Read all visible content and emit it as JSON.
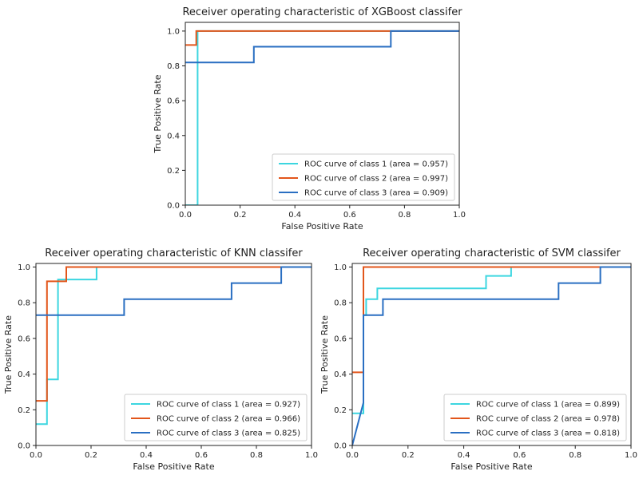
{
  "chart_data": [
    {
      "type": "line",
      "title": "Receiver operating characteristic of XGBoost classifer",
      "xlabel": "False Positive Rate",
      "ylabel": "True Positive Rate",
      "xlim": [
        0,
        1
      ],
      "ylim": [
        0,
        1.05
      ],
      "xticks": [
        "0.0",
        "0.2",
        "0.4",
        "0.6",
        "0.8",
        "1.0"
      ],
      "yticks": [
        "0.0",
        "0.2",
        "0.4",
        "0.6",
        "0.8",
        "1.0"
      ],
      "legend_position": "lower-right",
      "series": [
        {
          "name": "ROC curve of class 1 (area = 0.957)",
          "color": "#3cd6e0",
          "x": [
            0.0,
            0.045,
            0.045,
            1.0
          ],
          "y": [
            0.0,
            0.0,
            1.0,
            1.0
          ]
        },
        {
          "name": "ROC curve of class 2 (area = 0.997)",
          "color": "#e2561b",
          "x": [
            0.0,
            0.04,
            0.04,
            1.0
          ],
          "y": [
            0.92,
            0.92,
            1.0,
            1.0
          ]
        },
        {
          "name": "ROC curve of class 3 (area = 0.909)",
          "color": "#2a6fc2",
          "x": [
            0.0,
            0.25,
            0.25,
            0.75,
            0.75,
            1.0
          ],
          "y": [
            0.82,
            0.82,
            0.91,
            0.91,
            1.0,
            1.0
          ]
        }
      ]
    },
    {
      "type": "line",
      "title": "Receiver operating characteristic of KNN classifer",
      "xlabel": "False Positive Rate",
      "ylabel": "True Positive Rate",
      "xlim": [
        0,
        1
      ],
      "ylim": [
        0,
        1.02
      ],
      "xticks": [
        "0.0",
        "0.2",
        "0.4",
        "0.6",
        "0.8",
        "1.0"
      ],
      "yticks": [
        "0.0",
        "0.2",
        "0.4",
        "0.6",
        "0.8",
        "1.0"
      ],
      "legend_position": "lower-right",
      "series": [
        {
          "name": "ROC curve of class 1 (area = 0.927)",
          "color": "#3cd6e0",
          "x": [
            0.0,
            0.04,
            0.04,
            0.08,
            0.08,
            0.1,
            0.1,
            0.22,
            0.22,
            1.0
          ],
          "y": [
            0.12,
            0.12,
            0.37,
            0.37,
            0.93,
            0.93,
            0.93,
            0.93,
            1.0,
            1.0
          ]
        },
        {
          "name": "ROC curve of class 2 (area = 0.966)",
          "color": "#e2561b",
          "x": [
            0.0,
            0.04,
            0.04,
            0.11,
            0.11,
            1.0
          ],
          "y": [
            0.25,
            0.25,
            0.92,
            0.92,
            1.0,
            1.0
          ]
        },
        {
          "name": "ROC curve of class 3 (area = 0.825)",
          "color": "#2a6fc2",
          "x": [
            0.0,
            0.32,
            0.32,
            0.71,
            0.71,
            0.89,
            0.89,
            1.0
          ],
          "y": [
            0.73,
            0.73,
            0.82,
            0.82,
            0.91,
            0.91,
            1.0,
            1.0
          ]
        }
      ]
    },
    {
      "type": "line",
      "title": "Receiver operating characteristic of SVM classifer",
      "xlabel": "False Positive Rate",
      "ylabel": "True Positive Rate",
      "xlim": [
        0,
        1
      ],
      "ylim": [
        0,
        1.02
      ],
      "xticks": [
        "0.0",
        "0.2",
        "0.4",
        "0.6",
        "0.8",
        "1.0"
      ],
      "yticks": [
        "0.0",
        "0.2",
        "0.4",
        "0.6",
        "0.8",
        "1.0"
      ],
      "legend_position": "lower-right",
      "series": [
        {
          "name": "ROC curve of class 1 (area = 0.899)",
          "color": "#3cd6e0",
          "x": [
            0.0,
            0.04,
            0.04,
            0.05,
            0.05,
            0.09,
            0.09,
            0.48,
            0.48,
            0.57,
            0.57,
            1.0
          ],
          "y": [
            0.18,
            0.18,
            0.73,
            0.73,
            0.82,
            0.82,
            0.88,
            0.88,
            0.95,
            0.95,
            1.0,
            1.0
          ]
        },
        {
          "name": "ROC curve of class 2 (area = 0.978)",
          "color": "#e2561b",
          "x": [
            0.0,
            0.04,
            0.04,
            1.0
          ],
          "y": [
            0.41,
            0.41,
            1.0,
            1.0
          ]
        },
        {
          "name": "ROC curve of class 3 (area = 0.818)",
          "color": "#2a6fc2",
          "x": [
            0.0,
            0.03,
            0.04,
            0.04,
            0.11,
            0.11,
            0.74,
            0.74,
            0.89,
            0.89,
            1.0
          ],
          "y": [
            0.0,
            0.18,
            0.24,
            0.73,
            0.73,
            0.82,
            0.82,
            0.91,
            0.91,
            1.0,
            1.0
          ]
        }
      ]
    }
  ]
}
